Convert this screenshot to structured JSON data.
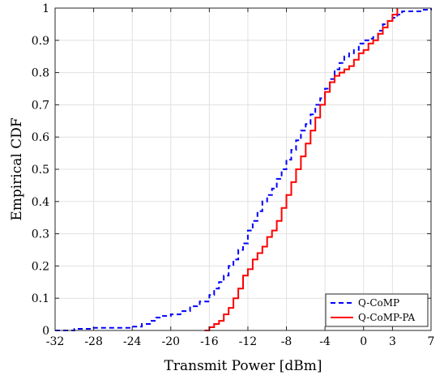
{
  "chart_data": {
    "type": "line",
    "title": "",
    "xlabel": "Transmit Power [dBm]",
    "ylabel": "Empirical CDF",
    "xlim": [
      -32,
      7
    ],
    "ylim": [
      0,
      1
    ],
    "xticks": [
      -32,
      -28,
      -24,
      -20,
      -16,
      -12,
      -8,
      -4,
      0,
      3,
      7
    ],
    "xtick_labels": [
      "-32",
      "-28",
      "-24",
      "-20",
      "-16",
      "-12",
      "-8",
      "-4",
      "0",
      "3",
      "7"
    ],
    "yticks": [
      0,
      0.1,
      0.2,
      0.3,
      0.4,
      0.5,
      0.6,
      0.7,
      0.8,
      0.9,
      1
    ],
    "ytick_labels": [
      "0",
      "0.1",
      "0.2",
      "0.3",
      "0.4",
      "0.5",
      "0.6",
      "0.7",
      "0.8",
      "0.9",
      "1"
    ],
    "grid": true,
    "legend_position": "bottom-right",
    "series": [
      {
        "name": "Q-CoMP",
        "color": "#0000ff",
        "style": "dashed",
        "x": [
          -32,
          -30,
          -28,
          -26,
          -24,
          -23,
          -22,
          -21.5,
          -21,
          -20,
          -19,
          -18,
          -17,
          -16,
          -15.5,
          -15,
          -14.5,
          -14,
          -13.5,
          -13,
          -12.5,
          -12,
          -11.5,
          -11,
          -10.5,
          -10,
          -9.5,
          -9,
          -8.5,
          -8,
          -7.5,
          -7,
          -6.5,
          -6,
          -5.5,
          -5,
          -4.5,
          -4,
          -3.5,
          -3,
          -2.5,
          -2,
          -1.5,
          -1,
          -0.5,
          0,
          0.5,
          1,
          1.5,
          2,
          2.5,
          3,
          3.5,
          4,
          5,
          6,
          7
        ],
        "y": [
          0,
          0.005,
          0.008,
          0.008,
          0.012,
          0.02,
          0.03,
          0.04,
          0.045,
          0.05,
          0.06,
          0.075,
          0.09,
          0.11,
          0.13,
          0.15,
          0.17,
          0.2,
          0.22,
          0.25,
          0.27,
          0.31,
          0.34,
          0.37,
          0.4,
          0.42,
          0.44,
          0.47,
          0.5,
          0.53,
          0.56,
          0.59,
          0.62,
          0.64,
          0.67,
          0.7,
          0.72,
          0.75,
          0.78,
          0.81,
          0.83,
          0.85,
          0.86,
          0.87,
          0.89,
          0.9,
          0.905,
          0.91,
          0.93,
          0.95,
          0.96,
          0.97,
          0.98,
          0.99,
          0.99,
          0.995,
          1
        ]
      },
      {
        "name": "Q-CoMP-PA",
        "color": "#ff0000",
        "style": "solid",
        "x": [
          -16.5,
          -16,
          -15.5,
          -15,
          -14.5,
          -14,
          -13.5,
          -13,
          -12.5,
          -12,
          -11.5,
          -11,
          -10.5,
          -10,
          -9.5,
          -9,
          -8.5,
          -8,
          -7.5,
          -7,
          -6.5,
          -6,
          -5.5,
          -5,
          -4.5,
          -4,
          -3.5,
          -3,
          -2.5,
          -2,
          -1.5,
          -1,
          -0.5,
          0,
          0.5,
          1,
          1.5,
          2,
          2.5,
          3,
          3.5
        ],
        "y": [
          0,
          0.01,
          0.02,
          0.03,
          0.05,
          0.07,
          0.1,
          0.13,
          0.17,
          0.19,
          0.22,
          0.24,
          0.26,
          0.29,
          0.31,
          0.34,
          0.38,
          0.42,
          0.46,
          0.5,
          0.54,
          0.58,
          0.62,
          0.66,
          0.7,
          0.74,
          0.77,
          0.79,
          0.8,
          0.81,
          0.82,
          0.84,
          0.86,
          0.87,
          0.89,
          0.9,
          0.92,
          0.94,
          0.96,
          0.98,
          1
        ]
      }
    ]
  }
}
